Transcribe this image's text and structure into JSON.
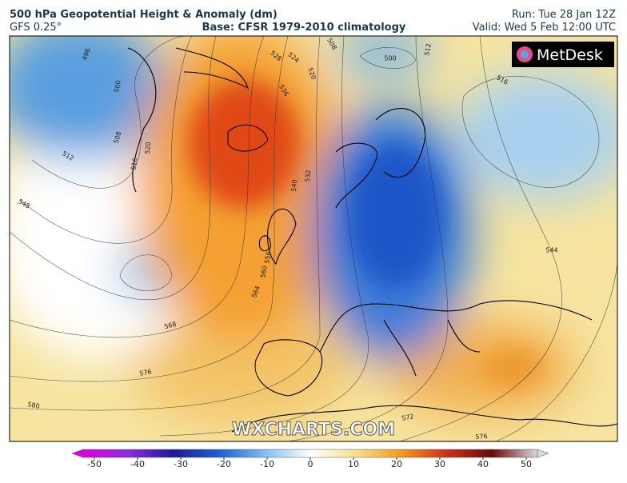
{
  "header": {
    "title": "500 hPa Geopotential Height & Anomaly (dm)",
    "model": "GFS 0.25°",
    "base": "Base: CFSR 1979-2010 climatology",
    "run": "Run: Tue 28 Jan 12Z",
    "valid": "Valid: Wed 5 Feb 12:00 UTC"
  },
  "logo": "MetDesk",
  "watermark": "WXCHARTS.COM",
  "contour_labels": [
    496,
    500,
    508,
    512,
    516,
    520,
    548,
    524,
    520,
    528,
    536,
    532,
    540,
    556,
    560,
    564,
    568,
    576,
    580,
    508,
    500,
    512,
    516,
    544,
    572,
    576
  ],
  "colorbar": {
    "ticks": [
      -50,
      -40,
      -30,
      -20,
      -10,
      0,
      10,
      20,
      30,
      40,
      50
    ]
  }
}
